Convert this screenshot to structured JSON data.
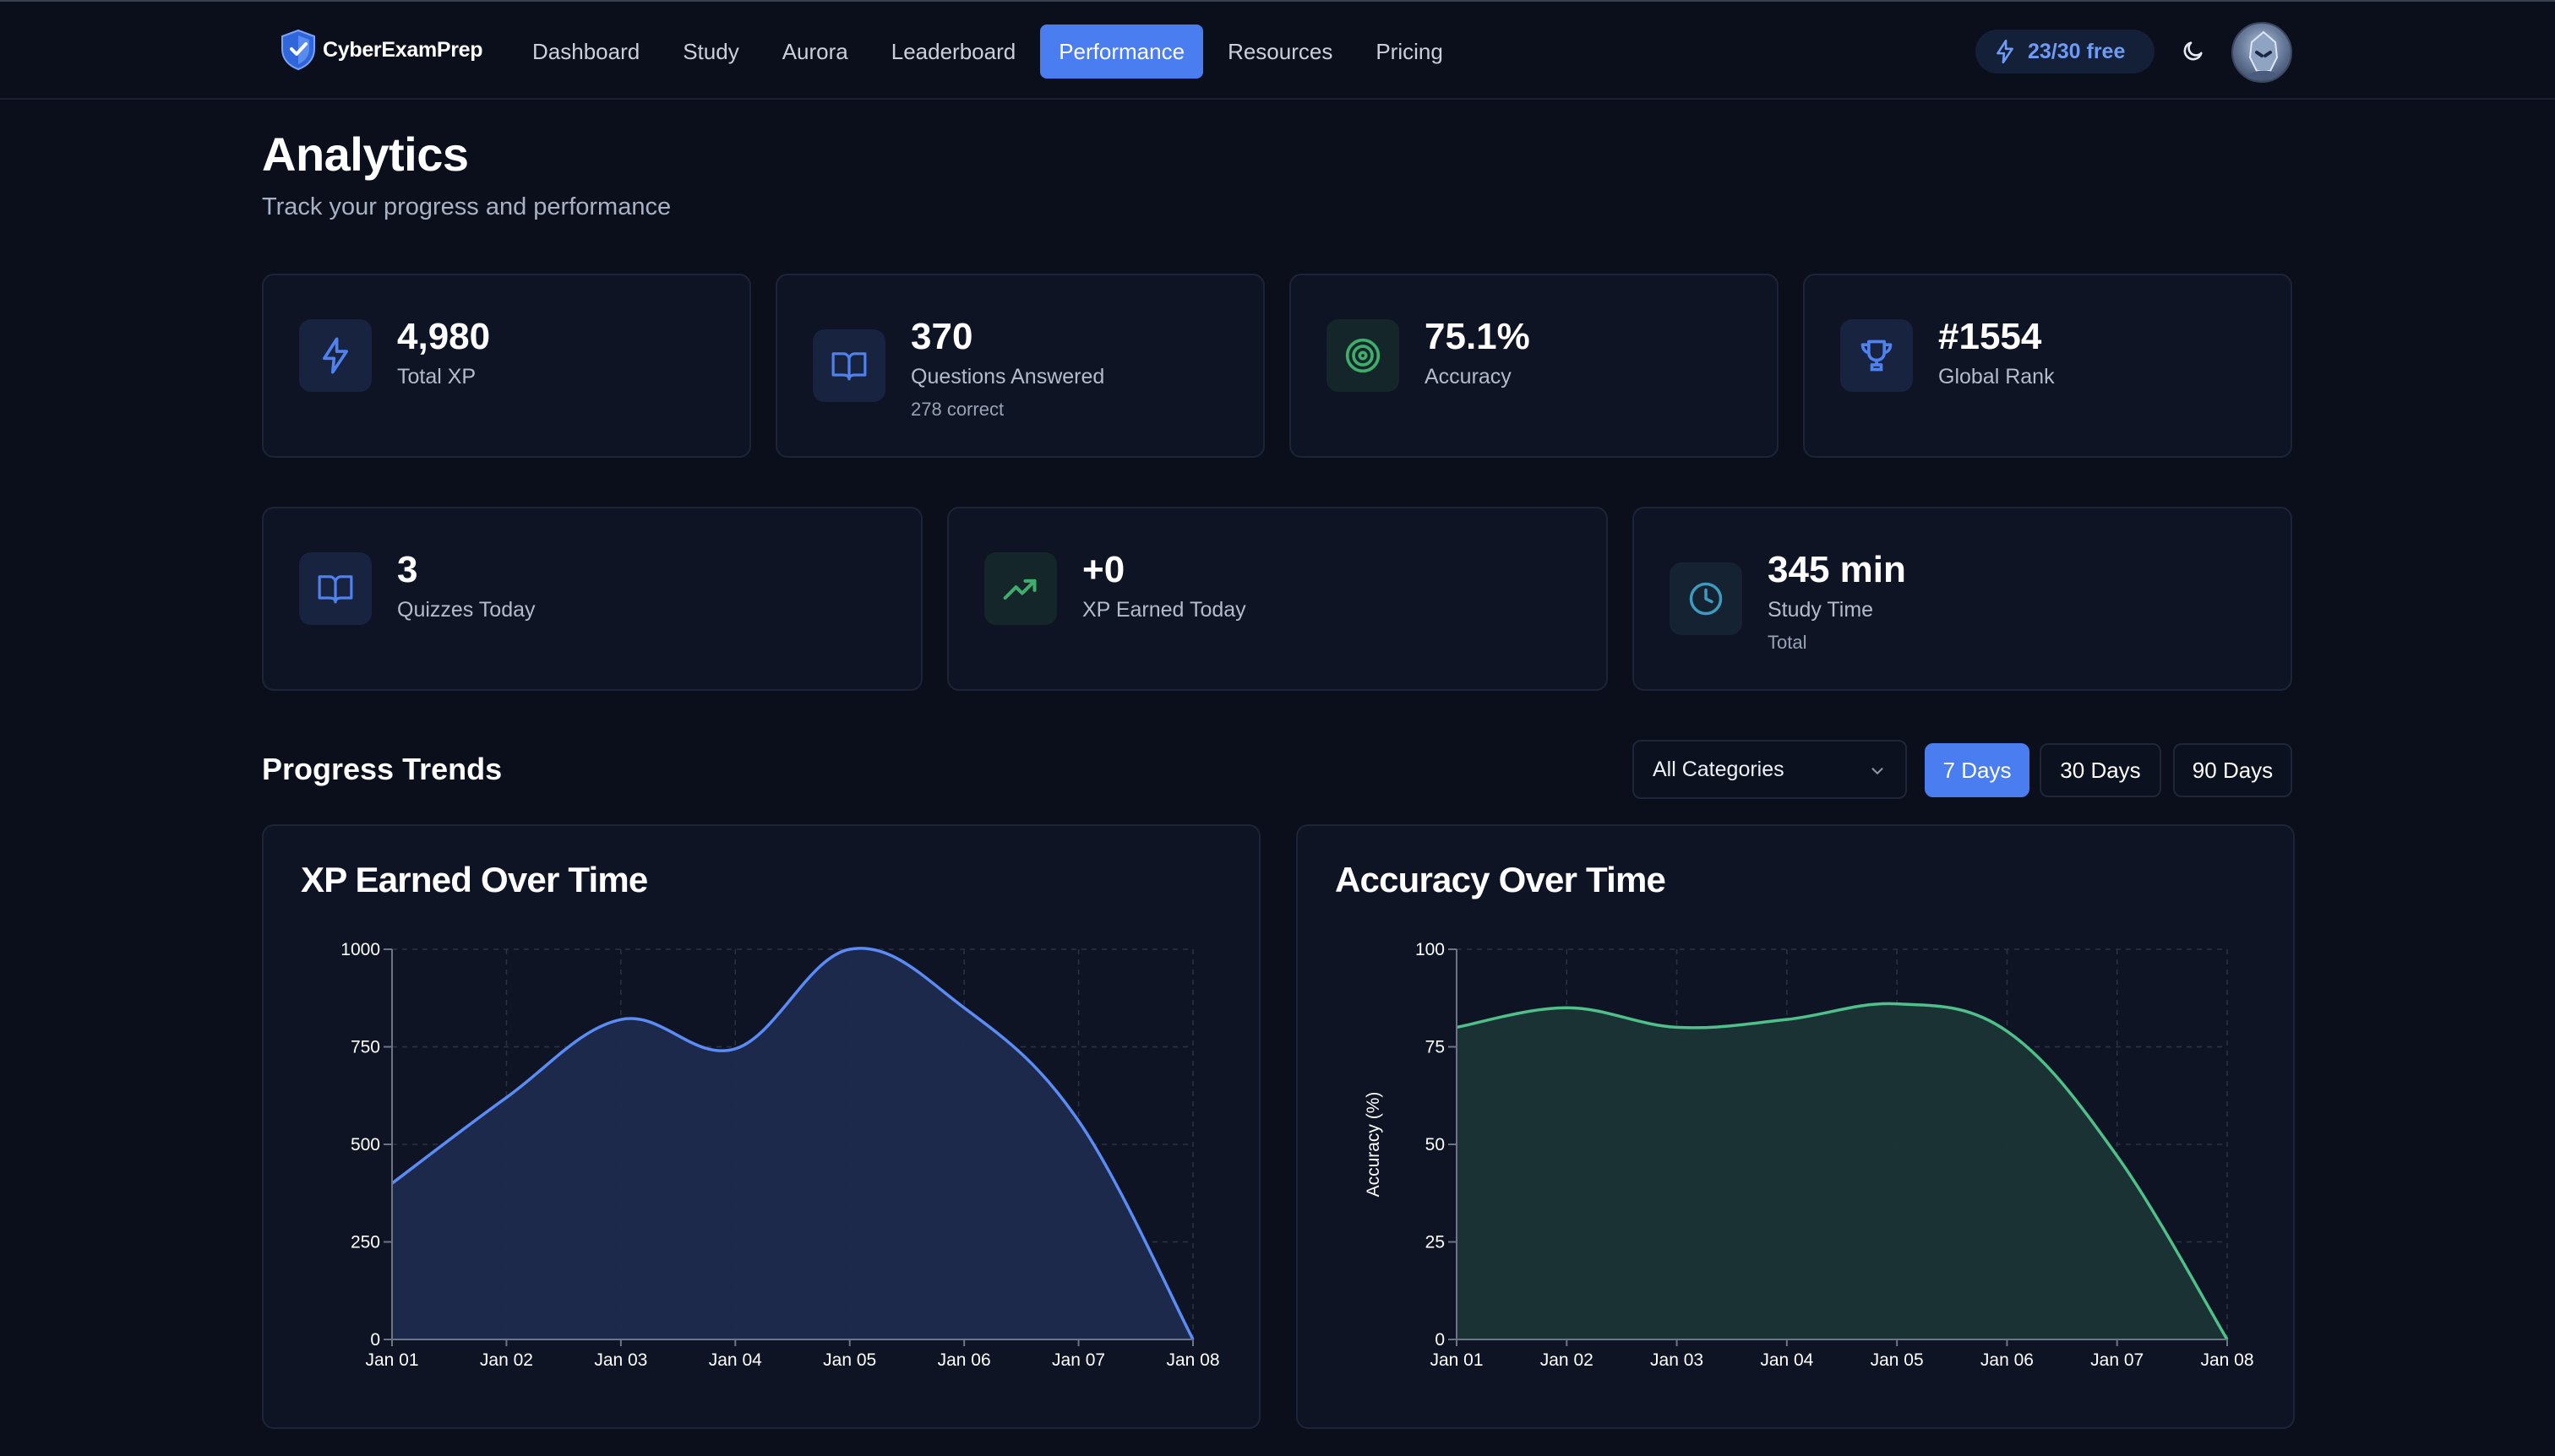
{
  "nav": {
    "brand": "CyberExamPrep",
    "links": [
      "Dashboard",
      "Study",
      "Aurora",
      "Leaderboard",
      "Performance",
      "Resources",
      "Pricing"
    ],
    "active": "Performance",
    "credits": "23/30 free"
  },
  "header": {
    "title": "Analytics",
    "subtitle": "Track your progress and performance"
  },
  "stats": [
    {
      "icon": "lightning-icon",
      "value": "4,980",
      "label": "Total XP"
    },
    {
      "icon": "book-icon",
      "value": "370",
      "label": "Questions Answered",
      "extra": "278 correct"
    },
    {
      "icon": "target-icon",
      "value": "75.1%",
      "label": "Accuracy"
    },
    {
      "icon": "trophy-icon",
      "value": "#1554",
      "label": "Global Rank"
    }
  ],
  "stats2": [
    {
      "icon": "book-icon",
      "value": "3",
      "label": "Quizzes Today"
    },
    {
      "icon": "trending-up-icon",
      "value": "+0",
      "label": "XP Earned Today"
    },
    {
      "icon": "clock-icon",
      "value": "345 min",
      "label": "Study Time",
      "extra": "Total"
    }
  ],
  "trends": {
    "title": "Progress Trends",
    "category": "All Categories",
    "ranges": [
      "7 Days",
      "30 Days",
      "90 Days"
    ],
    "active_range": "7 Days"
  },
  "colors": {
    "accent": "#4a7ef0",
    "xp_line": "#5b8cf5",
    "xp_fill": "#1d2a4e",
    "acc_line": "#4fc08a",
    "acc_fill": "#1b3436"
  },
  "chart_data": [
    {
      "type": "area",
      "title": "XP Earned Over Time",
      "xlabel": "",
      "ylabel": "",
      "x": [
        "Jan 01",
        "Jan 02",
        "Jan 03",
        "Jan 04",
        "Jan 05",
        "Jan 06",
        "Jan 07",
        "Jan 08"
      ],
      "values": [
        400,
        620,
        820,
        745,
        1000,
        850,
        560,
        0
      ],
      "yticks": [
        0,
        250,
        500,
        750,
        1000
      ],
      "ylim": [
        0,
        1000
      ],
      "grid": true
    },
    {
      "type": "area",
      "title": "Accuracy Over Time",
      "xlabel": "",
      "ylabel": "Accuracy (%)",
      "x": [
        "Jan 01",
        "Jan 02",
        "Jan 03",
        "Jan 04",
        "Jan 05",
        "Jan 06",
        "Jan 07",
        "Jan 08"
      ],
      "values": [
        80,
        85,
        80,
        82,
        86,
        79,
        47,
        0
      ],
      "yticks": [
        0,
        25,
        50,
        75,
        100
      ],
      "ylim": [
        0,
        100
      ],
      "grid": true
    }
  ]
}
